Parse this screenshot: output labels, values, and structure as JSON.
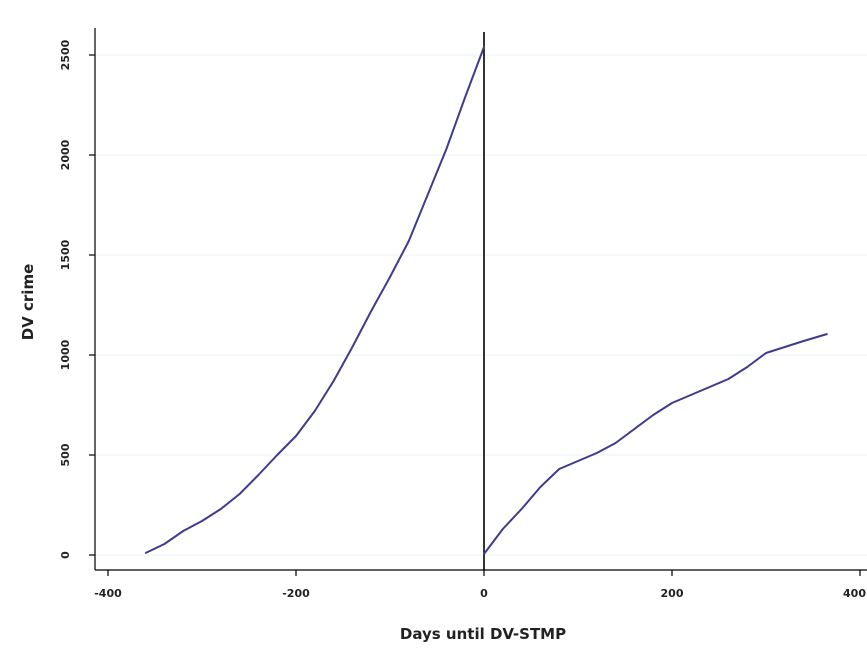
{
  "chart_data": {
    "type": "line",
    "xlabel": "Days until DV-STMP",
    "ylabel": "DV crime",
    "xlim": [
      -400,
      400
    ],
    "ylim": [
      0,
      2500
    ],
    "xticks": [
      -400,
      -200,
      0,
      200,
      400
    ],
    "yticks": [
      0,
      500,
      1000,
      1500,
      2000,
      2500
    ],
    "grid": true,
    "event_line_x": 0,
    "colors": {
      "series": "#3f3b8f",
      "event_line": "#000000",
      "grid": "#eaf2f3"
    },
    "series": [
      {
        "segment": "before",
        "x": [
          -360,
          -340,
          -320,
          -300,
          -280,
          -260,
          -240,
          -220,
          -200,
          -180,
          -160,
          -140,
          -120,
          -100,
          -80,
          -60,
          -40,
          -20,
          0
        ],
        "y": [
          10,
          55,
          120,
          170,
          230,
          305,
          400,
          500,
          595,
          720,
          870,
          1040,
          1220,
          1390,
          1570,
          1800,
          2030,
          2290,
          2540
        ]
      },
      {
        "segment": "after",
        "x": [
          0,
          20,
          40,
          60,
          80,
          100,
          120,
          140,
          160,
          180,
          200,
          220,
          240,
          260,
          280,
          300,
          320,
          340,
          365
        ],
        "y": [
          5,
          130,
          230,
          340,
          430,
          470,
          510,
          560,
          630,
          700,
          760,
          800,
          840,
          880,
          940,
          1010,
          1040,
          1070,
          1105
        ]
      }
    ]
  }
}
